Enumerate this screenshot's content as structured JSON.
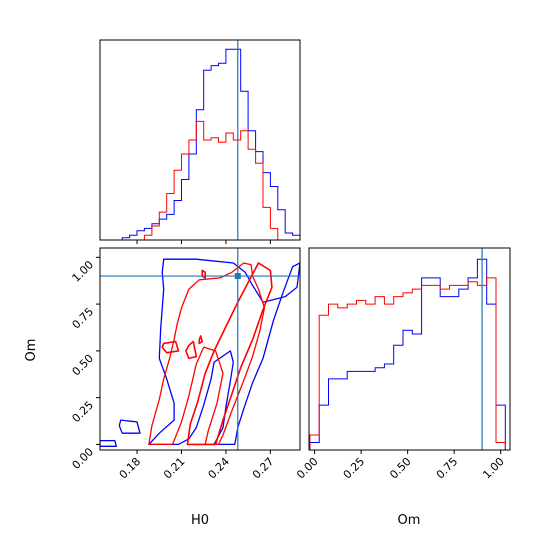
{
  "chart_data": {
    "type": "corner-plot",
    "parameters": [
      "H0",
      "Om"
    ],
    "colors": {
      "run1": "#0000ff",
      "run2": "#ff0000",
      "truth": "#1f77b4"
    },
    "truths": {
      "H0": 0.248,
      "Om": 0.9
    },
    "axes": {
      "H0": {
        "range": [
          0.155,
          0.29
        ],
        "ticks": [
          0.18,
          0.21,
          0.24,
          0.27
        ],
        "tick_labels": [
          "0.18",
          "0.21",
          "0.24",
          "0.27"
        ],
        "xlabel": "H0"
      },
      "Om": {
        "range": [
          -0.03,
          1.05
        ],
        "ticks": [
          0.0,
          0.25,
          0.5,
          0.75,
          1.0
        ],
        "tick_labels": [
          "0.00",
          "0.25",
          "0.50",
          "0.75",
          "1.00"
        ],
        "label": "Om"
      }
    },
    "histograms": {
      "H0": {
        "bin_edges": [
          0.155,
          0.16,
          0.165,
          0.17,
          0.175,
          0.18,
          0.185,
          0.19,
          0.195,
          0.2,
          0.205,
          0.21,
          0.215,
          0.22,
          0.225,
          0.23,
          0.235,
          0.24,
          0.245,
          0.25,
          0.255,
          0.26,
          0.265,
          0.27,
          0.275,
          0.28,
          0.285,
          0.29
        ],
        "series": [
          {
            "color": "blue",
            "values": [
              0,
              0,
              0,
              0.01,
              0.02,
              0.04,
              0.05,
              0.07,
              0.09,
              0.11,
              0.17,
              0.26,
              0.37,
              0.56,
              0.73,
              0.75,
              0.76,
              0.82,
              0.82,
              0.64,
              0.47,
              0.38,
              0.29,
              0.23,
              0.13,
              0.03,
              0.02
            ]
          },
          {
            "color": "red",
            "values": [
              0,
              0,
              0,
              0,
              0,
              0,
              0.02,
              0.06,
              0.12,
              0.2,
              0.3,
              0.37,
              0.43,
              0.51,
              0.43,
              0.44,
              0.42,
              0.46,
              0.43,
              0.47,
              0.39,
              0.33,
              0.14,
              0.05,
              0,
              0,
              0
            ]
          }
        ]
      },
      "Om": {
        "bin_edges": [
          -0.025,
          0.025,
          0.075,
          0.125,
          0.175,
          0.225,
          0.275,
          0.325,
          0.375,
          0.425,
          0.475,
          0.525,
          0.575,
          0.625,
          0.675,
          0.725,
          0.775,
          0.825,
          0.875,
          0.925,
          0.975,
          1.025
        ],
        "series": [
          {
            "color": "blue",
            "values": [
              0.02,
              0.12,
              0.19,
              0.19,
              0.21,
              0.21,
              0.21,
              0.22,
              0.23,
              0.28,
              0.32,
              0.31,
              0.46,
              0.46,
              0.41,
              0.41,
              0.43,
              0.46,
              0.51,
              0.39,
              0.12
            ]
          },
          {
            "color": "red",
            "values": [
              0.04,
              0.36,
              0.39,
              0.38,
              0.39,
              0.4,
              0.39,
              0.41,
              0.39,
              0.41,
              0.42,
              0.43,
              0.44,
              0.44,
              0.43,
              0.44,
              0.44,
              0.45,
              0.44,
              0.46,
              0.02
            ]
          }
        ]
      }
    },
    "contours": [
      {
        "color": "blue",
        "level": "outer",
        "points": [
          [
            0.188,
            0.0
          ],
          [
            0.195,
            0.06
          ],
          [
            0.205,
            0.13
          ],
          [
            0.205,
            0.22
          ],
          [
            0.2,
            0.35
          ],
          [
            0.195,
            0.46
          ],
          [
            0.196,
            0.62
          ],
          [
            0.198,
            0.83
          ],
          [
            0.197,
            0.92
          ],
          [
            0.198,
            0.99
          ],
          [
            0.22,
            0.99
          ],
          [
            0.245,
            0.97
          ],
          [
            0.253,
            0.92
          ],
          [
            0.258,
            0.85
          ],
          [
            0.265,
            0.76
          ],
          [
            0.28,
            0.79
          ],
          [
            0.288,
            0.84
          ],
          [
            0.29,
            0.97
          ],
          [
            0.285,
            0.95
          ],
          [
            0.278,
            0.8
          ],
          [
            0.272,
            0.66
          ],
          [
            0.265,
            0.46
          ],
          [
            0.258,
            0.33
          ],
          [
            0.252,
            0.19
          ],
          [
            0.248,
            0.09
          ],
          [
            0.246,
            0.0
          ],
          [
            0.232,
            0.0
          ],
          [
            0.238,
            0.09
          ],
          [
            0.24,
            0.2
          ],
          [
            0.243,
            0.34
          ],
          [
            0.245,
            0.44
          ],
          [
            0.243,
            0.5
          ],
          [
            0.232,
            0.44
          ],
          [
            0.23,
            0.35
          ],
          [
            0.225,
            0.21
          ],
          [
            0.22,
            0.09
          ],
          [
            0.215,
            0.03
          ],
          [
            0.208,
            0.0
          ]
        ]
      },
      {
        "color": "red",
        "level": "outer",
        "points": [
          [
            0.188,
            0.0
          ],
          [
            0.19,
            0.1
          ],
          [
            0.195,
            0.24
          ],
          [
            0.198,
            0.35
          ],
          [
            0.202,
            0.46
          ],
          [
            0.205,
            0.56
          ],
          [
            0.207,
            0.64
          ],
          [
            0.21,
            0.73
          ],
          [
            0.215,
            0.83
          ],
          [
            0.222,
            0.88
          ],
          [
            0.236,
            0.89
          ],
          [
            0.244,
            0.92
          ],
          [
            0.252,
            0.97
          ],
          [
            0.257,
            0.96
          ],
          [
            0.258,
            0.9
          ],
          [
            0.262,
            0.83
          ],
          [
            0.266,
            0.73
          ],
          [
            0.263,
            0.61
          ],
          [
            0.258,
            0.47
          ],
          [
            0.251,
            0.32
          ],
          [
            0.244,
            0.18
          ],
          [
            0.238,
            0.05
          ],
          [
            0.235,
            0.0
          ],
          [
            0.226,
            0.0
          ],
          [
            0.228,
            0.07
          ],
          [
            0.234,
            0.22
          ],
          [
            0.238,
            0.38
          ],
          [
            0.233,
            0.5
          ],
          [
            0.225,
            0.52
          ],
          [
            0.22,
            0.43
          ],
          [
            0.215,
            0.26
          ],
          [
            0.21,
            0.12
          ],
          [
            0.204,
            0.0
          ]
        ]
      },
      {
        "color": "red",
        "level": "inner",
        "points": [
          [
            0.214,
            0.0
          ],
          [
            0.216,
            0.11
          ],
          [
            0.221,
            0.23
          ],
          [
            0.226,
            0.38
          ],
          [
            0.232,
            0.5
          ],
          [
            0.24,
            0.63
          ],
          [
            0.248,
            0.76
          ],
          [
            0.256,
            0.88
          ],
          [
            0.262,
            0.97
          ],
          [
            0.27,
            0.93
          ],
          [
            0.271,
            0.84
          ],
          [
            0.265,
            0.72
          ],
          [
            0.258,
            0.56
          ],
          [
            0.25,
            0.41
          ],
          [
            0.244,
            0.27
          ],
          [
            0.238,
            0.13
          ],
          [
            0.233,
            0.0
          ]
        ]
      },
      {
        "color": "blue",
        "level": "outer",
        "points": [
          [
            0.155,
            0.02
          ],
          [
            0.165,
            0.02
          ],
          [
            0.166,
            -0.01
          ],
          [
            0.155,
            -0.01
          ]
        ]
      },
      {
        "color": "blue",
        "level": "outer",
        "points": [
          [
            0.169,
            0.13
          ],
          [
            0.18,
            0.12
          ],
          [
            0.182,
            0.06
          ],
          [
            0.17,
            0.06
          ],
          [
            0.168,
            0.1
          ]
        ]
      },
      {
        "color": "red",
        "level": "inner",
        "points": [
          [
            0.198,
            0.54
          ],
          [
            0.206,
            0.55
          ],
          [
            0.208,
            0.5
          ],
          [
            0.2,
            0.49
          ],
          [
            0.197,
            0.52
          ]
        ]
      },
      {
        "color": "red",
        "level": "inner",
        "points": [
          [
            0.215,
            0.53
          ],
          [
            0.218,
            0.55
          ],
          [
            0.22,
            0.47
          ],
          [
            0.215,
            0.46
          ],
          [
            0.213,
            0.5
          ]
        ]
      },
      {
        "color": "red",
        "level": "inner",
        "points": [
          [
            0.224,
            0.93
          ],
          [
            0.226,
            0.92
          ],
          [
            0.226,
            0.89
          ],
          [
            0.224,
            0.9
          ]
        ]
      },
      {
        "color": "red",
        "level": "inner",
        "points": [
          [
            0.222,
            0.56
          ],
          [
            0.223,
            0.58
          ],
          [
            0.224,
            0.55
          ],
          [
            0.222,
            0.54
          ]
        ]
      }
    ]
  }
}
